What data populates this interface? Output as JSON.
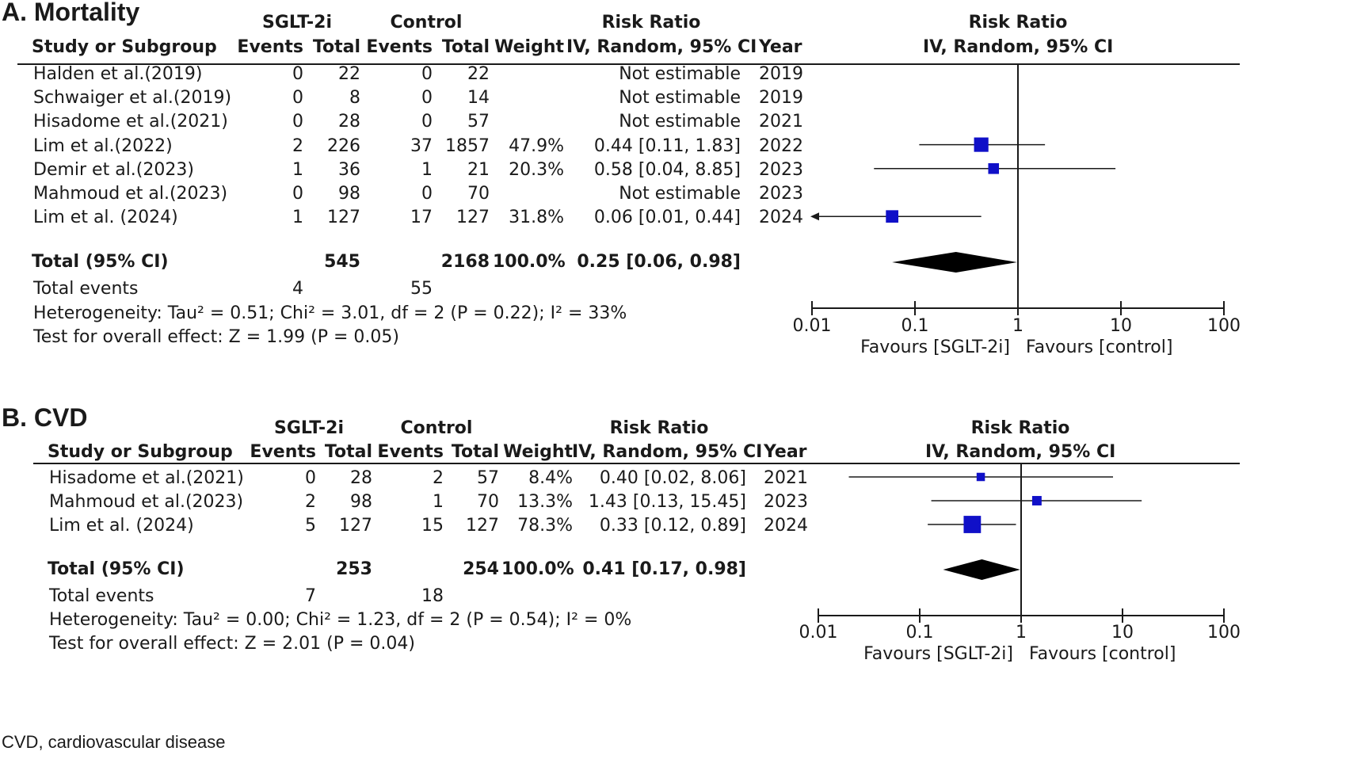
{
  "chart_data": [
    {
      "type": "forest",
      "panel_title": "A. Mortality",
      "headers": {
        "study": "Study or Subgroup",
        "group1": "SGLT-2i",
        "group2": "Control",
        "events": "Events",
        "total": "Total",
        "weight": "Weight",
        "effect": "Risk Ratio",
        "method": "IV, Random, 95% CI",
        "year": "Year"
      },
      "rows": [
        {
          "study": "Halden et al.(2019)",
          "e1": "0",
          "n1": "22",
          "e2": "0",
          "n2": "22",
          "weight": "",
          "effect_text": "Not estimable",
          "year": "2019",
          "rr": null,
          "lo": null,
          "hi": null,
          "w": 0
        },
        {
          "study": "Schwaiger et al.(2019)",
          "e1": "0",
          "n1": "8",
          "e2": "0",
          "n2": "14",
          "weight": "",
          "effect_text": "Not estimable",
          "year": "2019",
          "rr": null,
          "lo": null,
          "hi": null,
          "w": 0
        },
        {
          "study": "Hisadome et al.(2021)",
          "e1": "0",
          "n1": "28",
          "e2": "0",
          "n2": "57",
          "weight": "",
          "effect_text": "Not estimable",
          "year": "2021",
          "rr": null,
          "lo": null,
          "hi": null,
          "w": 0
        },
        {
          "study": "Lim et al.(2022)",
          "e1": "2",
          "n1": "226",
          "e2": "37",
          "n2": "1857",
          "weight": "47.9%",
          "effect_text": "0.44 [0.11, 1.83]",
          "year": "2022",
          "rr": 0.44,
          "lo": 0.11,
          "hi": 1.83,
          "w": 47.9
        },
        {
          "study": "Demir et al.(2023)",
          "e1": "1",
          "n1": "36",
          "e2": "1",
          "n2": "21",
          "weight": "20.3%",
          "effect_text": "0.58 [0.04, 8.85]",
          "year": "2023",
          "rr": 0.58,
          "lo": 0.04,
          "hi": 8.85,
          "w": 20.3
        },
        {
          "study": "Mahmoud et al.(2023)",
          "e1": "0",
          "n1": "98",
          "e2": "0",
          "n2": "70",
          "weight": "",
          "effect_text": "Not estimable",
          "year": "2023",
          "rr": null,
          "lo": null,
          "hi": null,
          "w": 0
        },
        {
          "study": "Lim et al. (2024)",
          "e1": "1",
          "n1": "127",
          "e2": "17",
          "n2": "127",
          "weight": "31.8%",
          "effect_text": "0.06 [0.01, 0.44]",
          "year": "2024",
          "rr": 0.06,
          "lo": 0.01,
          "hi": 0.44,
          "w": 31.8
        }
      ],
      "total": {
        "label": "Total (95% CI)",
        "n1": "545",
        "n2": "2168",
        "weight": "100.0%",
        "effect_text": "0.25 [0.06, 0.98]",
        "rr": 0.25,
        "lo": 0.06,
        "hi": 0.98
      },
      "total_events": {
        "label": "Total events",
        "e1": "4",
        "e2": "55"
      },
      "heterogeneity": "Heterogeneity: Tau² = 0.51; Chi² = 3.01, df = 2 (P = 0.22); I² = 33%",
      "overall_effect": "Test for overall effect: Z = 1.99 (P = 0.05)",
      "axis": {
        "scale": "log",
        "range": [
          0.01,
          100
        ],
        "ticks": [
          "0.01",
          "0.1",
          "1",
          "10",
          "100"
        ],
        "favours_left": "Favours [SGLT-2i]",
        "favours_right": "Favours [control]"
      }
    },
    {
      "type": "forest",
      "panel_title": "B. CVD",
      "headers": {
        "study": "Study or Subgroup",
        "group1": "SGLT-2i",
        "group2": "Control",
        "events": "Events",
        "total": "Total",
        "weight": "Weight",
        "effect": "Risk Ratio",
        "method": "IV, Random, 95% CI",
        "year": "Year"
      },
      "rows": [
        {
          "study": "Hisadome et al.(2021)",
          "e1": "0",
          "n1": "28",
          "e2": "2",
          "n2": "57",
          "weight": "8.4%",
          "effect_text": "0.40 [0.02, 8.06]",
          "year": "2021",
          "rr": 0.4,
          "lo": 0.02,
          "hi": 8.06,
          "w": 8.4
        },
        {
          "study": "Mahmoud et al.(2023)",
          "e1": "2",
          "n1": "98",
          "e2": "1",
          "n2": "70",
          "weight": "13.3%",
          "effect_text": "1.43 [0.13, 15.45]",
          "year": "2023",
          "rr": 1.43,
          "lo": 0.13,
          "hi": 15.45,
          "w": 13.3
        },
        {
          "study": "Lim et al. (2024)",
          "e1": "5",
          "n1": "127",
          "e2": "15",
          "n2": "127",
          "weight": "78.3%",
          "effect_text": "0.33 [0.12, 0.89]",
          "year": "2024",
          "rr": 0.33,
          "lo": 0.12,
          "hi": 0.89,
          "w": 78.3
        }
      ],
      "total": {
        "label": "Total (95% CI)",
        "n1": "253",
        "n2": "254",
        "weight": "100.0%",
        "effect_text": "0.41 [0.17, 0.98]",
        "rr": 0.41,
        "lo": 0.17,
        "hi": 0.98
      },
      "total_events": {
        "label": "Total events",
        "e1": "7",
        "e2": "18"
      },
      "heterogeneity": "Heterogeneity: Tau² = 0.00; Chi² = 1.23, df = 2 (P = 0.54); I² = 0%",
      "overall_effect": "Test for overall effect: Z = 2.01 (P = 0.04)",
      "axis": {
        "scale": "log",
        "range": [
          0.01,
          100
        ],
        "ticks": [
          "0.01",
          "0.1",
          "1",
          "10",
          "100"
        ],
        "favours_left": "Favours [SGLT-2i]",
        "favours_right": "Favours [control]"
      }
    }
  ],
  "footnote": "CVD, cardiovascular disease",
  "colors": {
    "marker": "#1010c8",
    "diamond": "#000000",
    "text": "#1a1a1a"
  }
}
